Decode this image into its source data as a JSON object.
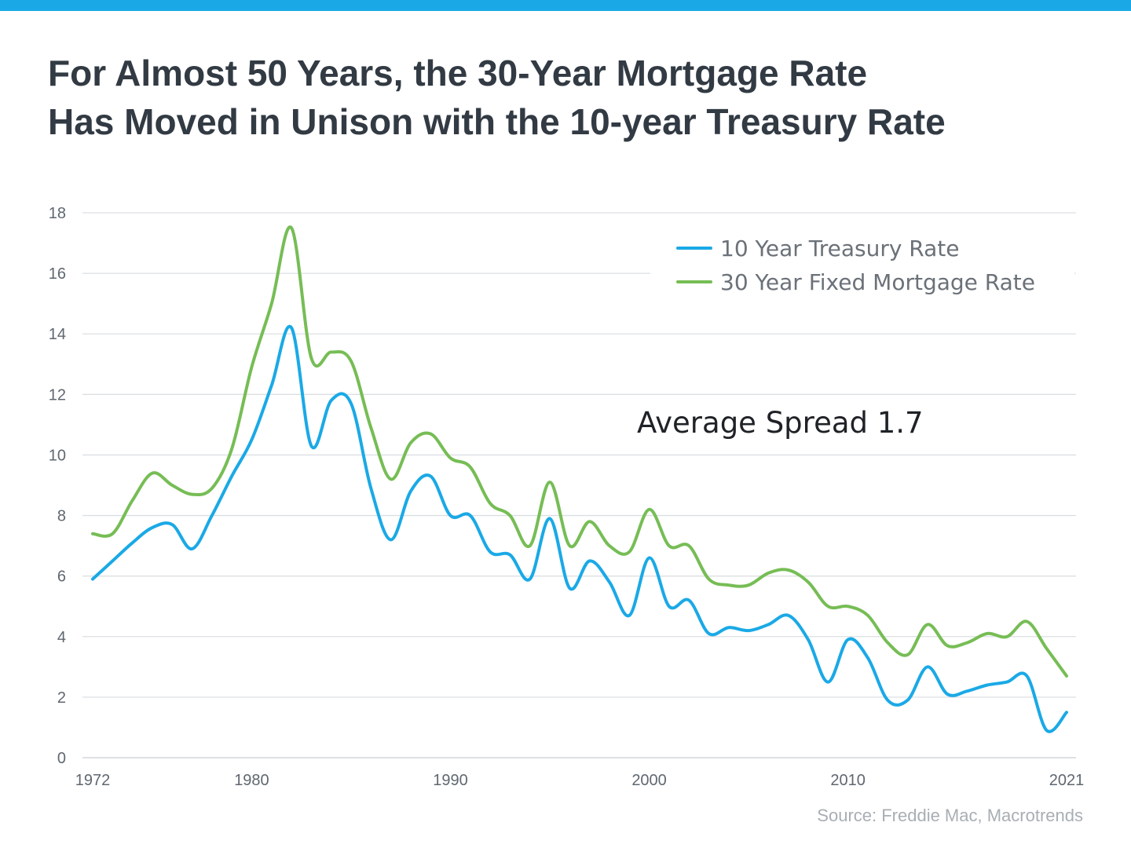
{
  "title_lines": [
    "For Almost 50 Years, the 30-Year Mortgage Rate",
    "Has Moved in Unison with the 10-year Treasury Rate"
  ],
  "source": "Source: Freddie Mac, Macrotrends",
  "colors": {
    "top_bar": "#1aa9e6",
    "title": "#323a43",
    "treasury": "#1aa9e6",
    "mortgage": "#76bd55",
    "grid": "#dcdfe3",
    "axis_text": "#5f6770",
    "legend_text": "#6b7178",
    "annotation": "#1f2226",
    "source": "#a9aeb4"
  },
  "chart_data": {
    "type": "line",
    "title": "For Almost 50 Years, the 30-Year Mortgage Rate Has Moved in Unison with the 10-year Treasury Rate",
    "xlabel": "",
    "ylabel": "",
    "xlim": [
      1972,
      2021
    ],
    "ylim": [
      0,
      18
    ],
    "grid": true,
    "legend_position": "top-right",
    "x_ticks": [
      "1972",
      "1980",
      "1990",
      "2000",
      "2010",
      "2021"
    ],
    "x_tick_values": [
      1972,
      1980,
      1990,
      2000,
      2010,
      2021
    ],
    "y_ticks": [
      "0",
      "2",
      "4",
      "6",
      "8",
      "10",
      "12",
      "14",
      "16",
      "18"
    ],
    "y_tick_values": [
      0,
      2,
      4,
      6,
      8,
      10,
      12,
      14,
      16,
      18
    ],
    "annotation": "Average Spread 1.7",
    "x": [
      1972,
      1973,
      1974,
      1975,
      1976,
      1977,
      1978,
      1979,
      1980,
      1981,
      1982,
      1983,
      1984,
      1985,
      1986,
      1987,
      1988,
      1989,
      1990,
      1991,
      1992,
      1993,
      1994,
      1995,
      1996,
      1997,
      1998,
      1999,
      2000,
      2001,
      2002,
      2003,
      2004,
      2005,
      2006,
      2007,
      2008,
      2009,
      2010,
      2011,
      2012,
      2013,
      2014,
      2015,
      2016,
      2017,
      2018,
      2019,
      2020,
      2021
    ],
    "series": [
      {
        "name": "10 Year Treasury Rate",
        "color": "#1aa9e6",
        "values": [
          5.9,
          6.5,
          7.1,
          7.6,
          7.7,
          6.9,
          8.0,
          9.3,
          10.5,
          12.3,
          14.2,
          10.3,
          11.8,
          11.7,
          8.9,
          7.2,
          8.8,
          9.3,
          8.0,
          8.0,
          6.8,
          6.7,
          5.9,
          7.9,
          5.6,
          6.5,
          5.8,
          4.7,
          6.6,
          5.0,
          5.2,
          4.1,
          4.3,
          4.2,
          4.4,
          4.7,
          3.9,
          2.5,
          3.9,
          3.3,
          1.9,
          1.9,
          3.0,
          2.1,
          2.2,
          2.4,
          2.5,
          2.7,
          0.9,
          1.5
        ]
      },
      {
        "name": "30 Year Fixed Mortgage Rate",
        "color": "#76bd55",
        "values": [
          7.4,
          7.4,
          8.5,
          9.4,
          9.0,
          8.7,
          8.9,
          10.2,
          12.9,
          15.0,
          17.5,
          13.2,
          13.4,
          13.1,
          10.9,
          9.2,
          10.4,
          10.7,
          9.9,
          9.6,
          8.4,
          8.0,
          7.0,
          9.1,
          7.0,
          7.8,
          7.0,
          6.8,
          8.2,
          7.0,
          7.0,
          5.9,
          5.7,
          5.7,
          6.1,
          6.2,
          5.8,
          5.0,
          5.0,
          4.7,
          3.8,
          3.4,
          4.4,
          3.7,
          3.8,
          4.1,
          4.0,
          4.5,
          3.6,
          2.7
        ]
      }
    ]
  }
}
